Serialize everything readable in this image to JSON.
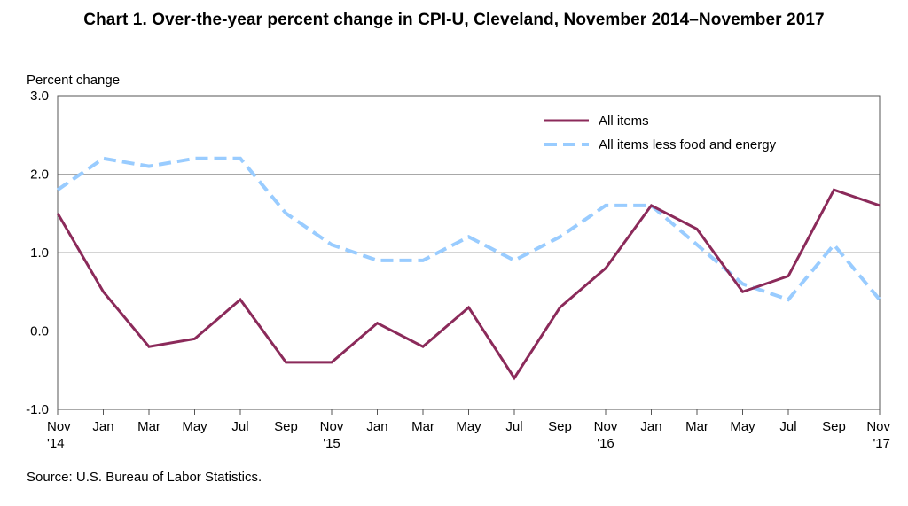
{
  "chart_data": {
    "type": "line",
    "title": "Chart 1. Over-the-year percent change in CPI-U, Cleveland, November 2014–November 2017",
    "ylabel": "Percent change",
    "xlabel": "",
    "ylim": [
      -1.0,
      3.0
    ],
    "yticks": [
      "3.0",
      "2.0",
      "1.0",
      "0.0",
      "-1.0"
    ],
    "grid": true,
    "legend_position": "top-right",
    "x": [
      "Nov 2014",
      "Jan 2015",
      "Mar 2015",
      "May 2015",
      "Jul 2015",
      "Sep 2015",
      "Nov 2015",
      "Jan 2016",
      "Mar 2016",
      "May 2016",
      "Jul 2016",
      "Sep 2016",
      "Nov 2016",
      "Jan 2017",
      "Mar 2017",
      "May 2017",
      "Jul 2017",
      "Sep 2017",
      "Nov 2017"
    ],
    "tick_labels": [
      {
        "month": "Nov",
        "year": "'14"
      },
      {
        "month": "Jan",
        "year": ""
      },
      {
        "month": "Mar",
        "year": ""
      },
      {
        "month": "May",
        "year": ""
      },
      {
        "month": "Jul",
        "year": ""
      },
      {
        "month": "Sep",
        "year": ""
      },
      {
        "month": "Nov",
        "year": "'15"
      },
      {
        "month": "Jan",
        "year": ""
      },
      {
        "month": "Mar",
        "year": ""
      },
      {
        "month": "May",
        "year": ""
      },
      {
        "month": "Jul",
        "year": ""
      },
      {
        "month": "Sep",
        "year": ""
      },
      {
        "month": "Nov",
        "year": "'16"
      },
      {
        "month": "Jan",
        "year": ""
      },
      {
        "month": "Mar",
        "year": ""
      },
      {
        "month": "May",
        "year": ""
      },
      {
        "month": "Jul",
        "year": ""
      },
      {
        "month": "Sep",
        "year": ""
      },
      {
        "month": "Nov",
        "year": "'17"
      }
    ],
    "series": [
      {
        "name": "All items",
        "color": "#8b2a5a",
        "dash": "solid",
        "values": [
          1.5,
          0.5,
          -0.2,
          -0.1,
          0.4,
          -0.4,
          -0.4,
          0.1,
          -0.2,
          0.3,
          -0.6,
          0.3,
          0.8,
          1.6,
          1.3,
          0.5,
          0.7,
          1.8,
          1.6
        ]
      },
      {
        "name": "All items less food and energy",
        "color": "#99ccff",
        "dash": "dashed",
        "values": [
          1.8,
          2.2,
          2.1,
          2.2,
          2.2,
          1.5,
          1.1,
          0.9,
          0.9,
          1.2,
          0.9,
          1.2,
          1.6,
          1.6,
          1.1,
          0.6,
          0.4,
          1.1,
          0.4
        ]
      }
    ],
    "source": "Source: U.S. Bureau of Labor Statistics."
  }
}
